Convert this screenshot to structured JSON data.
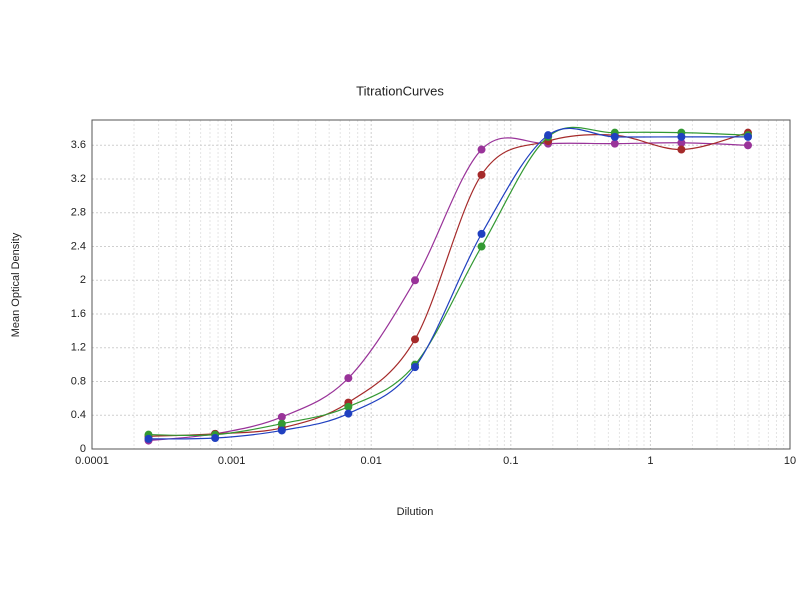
{
  "chart_data": {
    "type": "scatter",
    "title": "TitrationCurves",
    "x_label": "Dilution",
    "y_label": "Mean Optical Density",
    "x": [
      0.000254,
      0.000762,
      0.00229,
      0.00686,
      0.0206,
      0.0617,
      0.185,
      0.556,
      1.667,
      5
    ],
    "series": [
      {
        "color": "#993399",
        "values": [
          0.1,
          0.18,
          0.38,
          0.84,
          2.0,
          3.55,
          3.62,
          3.62,
          3.63,
          3.6
        ]
      },
      {
        "color": "#a52a2a",
        "values": [
          0.15,
          0.18,
          0.25,
          0.55,
          1.3,
          3.25,
          3.65,
          3.72,
          3.55,
          3.75
        ]
      },
      {
        "color": "#339933",
        "values": [
          0.17,
          0.17,
          0.3,
          0.5,
          1.0,
          2.4,
          3.7,
          3.75,
          3.75,
          3.72
        ]
      },
      {
        "color": "#2040c0",
        "values": [
          0.12,
          0.13,
          0.22,
          0.42,
          0.97,
          2.55,
          3.72,
          3.7,
          3.7,
          3.7
        ]
      }
    ],
    "xlim": [
      0.0001,
      10
    ],
    "xticks": [
      0.0001,
      0.001,
      0.01,
      0.1,
      1,
      10
    ],
    "xscale": "log",
    "ylim": [
      0,
      3.9
    ],
    "yticks": [
      0,
      0.4,
      0.8,
      1.2,
      1.6,
      2,
      2.4,
      2.8,
      3.2,
      3.6
    ],
    "grid": true
  }
}
